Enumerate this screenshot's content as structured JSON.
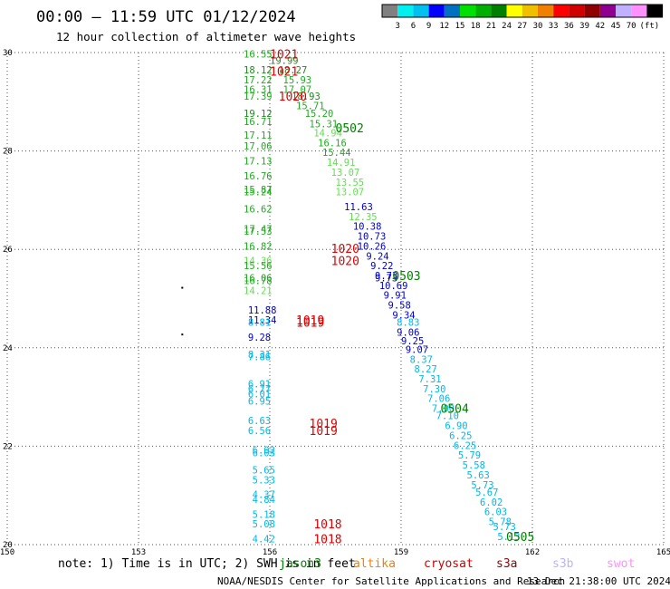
{
  "header": {
    "title": "00:00 – 11:59 UTC 01/12/2024",
    "subtitle": "12 hour collection of altimeter wave heights"
  },
  "colorbar": {
    "colors": [
      "#808080",
      "#00f0f0",
      "#00c0f0",
      "#0000ff",
      "#0070c0",
      "#00e000",
      "#00b000",
      "#008000",
      "#ffff00",
      "#f0c000",
      "#f08000",
      "#ff0000",
      "#d00000",
      "#900000",
      "#900090",
      "#c0b0ff",
      "#ff90ff",
      "#000000"
    ],
    "labels": [
      "3",
      "6",
      "9",
      "12",
      "15",
      "18",
      "21",
      "24",
      "27",
      "30",
      "33",
      "36",
      "39",
      "42",
      "45",
      "70"
    ],
    "unit": "(ft)"
  },
  "chart_data": {
    "type": "scatter",
    "title": "00:00 – 11:59 UTC 01/12/2024",
    "subtitle": "12 hour collection of altimeter wave heights",
    "xlim": [
      150,
      165
    ],
    "ylim": [
      20,
      30
    ],
    "x_ticks": [
      150,
      153,
      156,
      159,
      162,
      165
    ],
    "y_ticks": [
      20,
      22,
      24,
      26,
      28,
      30
    ],
    "grid": true,
    "swh_points": [
      {
        "lon": 155.4,
        "lat": 29.97,
        "v": 16.55
      },
      {
        "lon": 156.0,
        "lat": 29.84,
        "v": 19.99
      },
      {
        "lon": 155.4,
        "lat": 29.65,
        "v": 18.12
      },
      {
        "lon": 156.2,
        "lat": 29.65,
        "v": 18.27
      },
      {
        "lon": 155.4,
        "lat": 29.45,
        "v": 17.22
      },
      {
        "lon": 156.3,
        "lat": 29.45,
        "v": 15.93
      },
      {
        "lon": 155.4,
        "lat": 29.25,
        "v": 16.31
      },
      {
        "lon": 156.3,
        "lat": 29.25,
        "v": 17.07
      },
      {
        "lon": 155.4,
        "lat": 29.12,
        "v": 17.39
      },
      {
        "lon": 156.5,
        "lat": 29.12,
        "v": 18.93
      },
      {
        "lon": 156.6,
        "lat": 28.92,
        "v": 15.71
      },
      {
        "lon": 155.4,
        "lat": 28.77,
        "v": 19.12
      },
      {
        "lon": 156.8,
        "lat": 28.77,
        "v": 15.2
      },
      {
        "lon": 155.4,
        "lat": 28.6,
        "v": 16.71
      },
      {
        "lon": 156.9,
        "lat": 28.55,
        "v": 15.31
      },
      {
        "lon": 155.4,
        "lat": 28.32,
        "v": 17.11
      },
      {
        "lon": 157.0,
        "lat": 28.37,
        "v": 14.94
      },
      {
        "lon": 157.1,
        "lat": 28.17,
        "v": 16.16
      },
      {
        "lon": 155.4,
        "lat": 28.1,
        "v": 17.06
      },
      {
        "lon": 157.2,
        "lat": 27.97,
        "v": 15.44
      },
      {
        "lon": 155.4,
        "lat": 27.8,
        "v": 17.13
      },
      {
        "lon": 157.3,
        "lat": 27.77,
        "v": 14.91
      },
      {
        "lon": 157.4,
        "lat": 27.57,
        "v": 13.07
      },
      {
        "lon": 155.4,
        "lat": 27.5,
        "v": 16.76
      },
      {
        "lon": 157.5,
        "lat": 27.37,
        "v": 13.55
      },
      {
        "lon": 155.4,
        "lat": 27.22,
        "v": 15.87
      },
      {
        "lon": 155.4,
        "lat": 27.17,
        "v": 15.24
      },
      {
        "lon": 157.5,
        "lat": 27.17,
        "v": 13.07
      },
      {
        "lon": 157.7,
        "lat": 26.87,
        "v": 11.63
      },
      {
        "lon": 155.4,
        "lat": 26.82,
        "v": 16.62
      },
      {
        "lon": 157.8,
        "lat": 26.67,
        "v": 12.35
      },
      {
        "lon": 157.9,
        "lat": 26.47,
        "v": 10.38
      },
      {
        "lon": 155.4,
        "lat": 26.42,
        "v": 17.47
      },
      {
        "lon": 155.4,
        "lat": 26.37,
        "v": 17.53
      },
      {
        "lon": 158.0,
        "lat": 26.27,
        "v": 10.73
      },
      {
        "lon": 155.4,
        "lat": 26.07,
        "v": 16.82
      },
      {
        "lon": 158.0,
        "lat": 26.07,
        "v": 10.26
      },
      {
        "lon": 158.2,
        "lat": 25.87,
        "v": 9.24
      },
      {
        "lon": 155.4,
        "lat": 25.77,
        "v": 14.36
      },
      {
        "lon": 158.3,
        "lat": 25.67,
        "v": 9.22
      },
      {
        "lon": 155.4,
        "lat": 25.67,
        "v": 15.56
      },
      {
        "lon": 158.4,
        "lat": 25.47,
        "v": 9.73
      },
      {
        "lon": 158.4,
        "lat": 25.42,
        "v": 9.73
      },
      {
        "lon": 155.4,
        "lat": 25.42,
        "v": 16.06
      },
      {
        "lon": 155.4,
        "lat": 25.37,
        "v": 16.78
      },
      {
        "lon": 158.5,
        "lat": 25.27,
        "v": 10.69
      },
      {
        "lon": 155.4,
        "lat": 25.17,
        "v": 14.21
      },
      {
        "lon": 158.6,
        "lat": 25.07,
        "v": 9.91
      },
      {
        "lon": 158.7,
        "lat": 24.87,
        "v": 9.58
      },
      {
        "lon": 155.5,
        "lat": 24.77,
        "v": 11.88
      },
      {
        "lon": 158.8,
        "lat": 24.67,
        "v": 9.34
      },
      {
        "lon": 155.5,
        "lat": 24.57,
        "v": 11.34
      },
      {
        "lon": 155.5,
        "lat": 24.52,
        "v": 8.81
      },
      {
        "lon": 158.9,
        "lat": 24.52,
        "v": 8.83
      },
      {
        "lon": 158.9,
        "lat": 24.32,
        "v": 9.06
      },
      {
        "lon": 155.5,
        "lat": 24.22,
        "v": 9.28
      },
      {
        "lon": 159.0,
        "lat": 24.14,
        "v": 9.25
      },
      {
        "lon": 159.1,
        "lat": 23.97,
        "v": 9.07
      },
      {
        "lon": 155.5,
        "lat": 23.87,
        "v": 8.31
      },
      {
        "lon": 155.5,
        "lat": 23.82,
        "v": 7.86
      },
      {
        "lon": 159.2,
        "lat": 23.77,
        "v": 8.37
      },
      {
        "lon": 159.3,
        "lat": 23.57,
        "v": 8.27
      },
      {
        "lon": 159.4,
        "lat": 23.37,
        "v": 7.31
      },
      {
        "lon": 155.5,
        "lat": 23.27,
        "v": 6.91
      },
      {
        "lon": 155.5,
        "lat": 23.17,
        "v": 6.77
      },
      {
        "lon": 159.5,
        "lat": 23.17,
        "v": 7.3
      },
      {
        "lon": 155.5,
        "lat": 23.07,
        "v": 6.01
      },
      {
        "lon": 159.6,
        "lat": 22.97,
        "v": 7.06
      },
      {
        "lon": 155.5,
        "lat": 22.92,
        "v": 6.95
      },
      {
        "lon": 159.7,
        "lat": 22.77,
        "v": 7.0
      },
      {
        "lon": 159.8,
        "lat": 22.62,
        "v": 7.1
      },
      {
        "lon": 155.5,
        "lat": 22.52,
        "v": 6.63
      },
      {
        "lon": 160.0,
        "lat": 22.42,
        "v": 6.9
      },
      {
        "lon": 155.5,
        "lat": 22.32,
        "v": 6.56
      },
      {
        "lon": 160.1,
        "lat": 22.22,
        "v": 6.25
      },
      {
        "lon": 160.2,
        "lat": 22.02,
        "v": 6.25
      },
      {
        "lon": 155.6,
        "lat": 21.92,
        "v": 6.02
      },
      {
        "lon": 155.6,
        "lat": 21.87,
        "v": 6.03
      },
      {
        "lon": 160.3,
        "lat": 21.82,
        "v": 5.79
      },
      {
        "lon": 160.4,
        "lat": 21.62,
        "v": 5.58
      },
      {
        "lon": 155.6,
        "lat": 21.52,
        "v": 5.65
      },
      {
        "lon": 160.5,
        "lat": 21.42,
        "v": 5.63
      },
      {
        "lon": 155.6,
        "lat": 21.32,
        "v": 5.33
      },
      {
        "lon": 160.6,
        "lat": 21.22,
        "v": 5.73
      },
      {
        "lon": 160.7,
        "lat": 21.07,
        "v": 5.67
      },
      {
        "lon": 155.6,
        "lat": 21.02,
        "v": 4.37
      },
      {
        "lon": 155.6,
        "lat": 20.92,
        "v": 4.84
      },
      {
        "lon": 160.8,
        "lat": 20.87,
        "v": 6.02
      },
      {
        "lon": 160.9,
        "lat": 20.67,
        "v": 6.03
      },
      {
        "lon": 155.6,
        "lat": 20.62,
        "v": 5.18
      },
      {
        "lon": 161.0,
        "lat": 20.47,
        "v": 5.78
      },
      {
        "lon": 155.6,
        "lat": 20.42,
        "v": 5.08
      },
      {
        "lon": 161.1,
        "lat": 20.37,
        "v": 5.73
      },
      {
        "lon": 161.2,
        "lat": 20.17,
        "v": 5.13
      },
      {
        "lon": 155.6,
        "lat": 20.12,
        "v": 4.42
      }
    ],
    "pressure_labels": [
      {
        "lon": 156.0,
        "lat": 29.97,
        "text": "1021"
      },
      {
        "lon": 156.0,
        "lat": 29.62,
        "text": "1021"
      },
      {
        "lon": 156.2,
        "lat": 29.12,
        "text": "1020"
      },
      {
        "lon": 157.4,
        "lat": 26.02,
        "text": "1020"
      },
      {
        "lon": 157.4,
        "lat": 25.77,
        "text": "1020"
      },
      {
        "lon": 156.6,
        "lat": 24.57,
        "text": "1019"
      },
      {
        "lon": 156.6,
        "lat": 24.52,
        "text": "1019"
      },
      {
        "lon": 156.9,
        "lat": 22.47,
        "text": "1019"
      },
      {
        "lon": 156.9,
        "lat": 22.32,
        "text": "1019"
      },
      {
        "lon": 157.0,
        "lat": 20.42,
        "text": "1018"
      },
      {
        "lon": 157.0,
        "lat": 20.12,
        "text": "1018"
      }
    ],
    "time_labels": [
      {
        "lon": 157.5,
        "lat": 28.47,
        "text": "0502"
      },
      {
        "lon": 158.8,
        "lat": 25.47,
        "text": "0503"
      },
      {
        "lon": 159.9,
        "lat": 22.77,
        "text": "0504"
      },
      {
        "lon": 161.4,
        "lat": 20.17,
        "text": "0505"
      }
    ],
    "land_dots": [
      {
        "lon": 154.0,
        "lat": 25.22
      },
      {
        "lon": 154.0,
        "lat": 24.27
      }
    ]
  },
  "footer": {
    "note_prefix": "note:  1) Time is in UTC; 2) SWH is in feet",
    "missions": [
      {
        "name": "jason3",
        "color": "#008000"
      },
      {
        "name": "altika",
        "color": "#f08000"
      },
      {
        "name": "cryosat",
        "color": "#d00000"
      },
      {
        "name": "s3a",
        "color": "#900000"
      },
      {
        "name": "s3b",
        "color": "#c0b0ff"
      },
      {
        "name": "swot",
        "color": "#ff90ff"
      }
    ],
    "credit": "NOAA/NESDIS Center for Satellite Applications and Research",
    "generated": "13 Dec 21:38:00 UTC 2024"
  }
}
